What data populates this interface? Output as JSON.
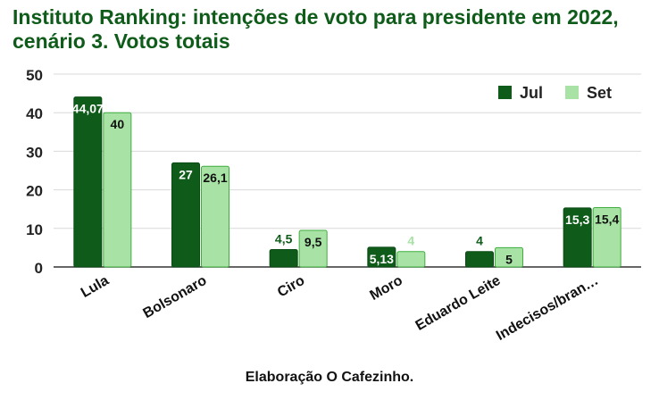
{
  "chart_data": {
    "type": "bar",
    "title": "Instituto Ranking: intenções de voto para presidente em 2022, cenário 3. Votos totais",
    "caption": "Elaboração O Cafezinho.",
    "categories": [
      "Lula",
      "Bolsonaro",
      "Ciro",
      "Moro",
      "Eduardo Leite",
      "Indecisos/bran…"
    ],
    "series": [
      {
        "name": "Jul",
        "color": "#0f5c1a",
        "values": [
          44.07,
          27,
          4.5,
          5.13,
          4,
          15.3
        ],
        "labels": [
          "44,07",
          "27",
          "4,5",
          "5,13",
          "4",
          "15,3"
        ]
      },
      {
        "name": "Set",
        "color": "#a8e3a5",
        "values": [
          40,
          26.1,
          9.5,
          4,
          5,
          15.4
        ],
        "labels": [
          "40",
          "26,1",
          "9,5",
          "4",
          "5",
          "15,4"
        ]
      }
    ],
    "y_ticks": [
      "0",
      "10",
      "20",
      "30",
      "40",
      "50"
    ],
    "ylim": [
      0,
      50
    ],
    "grid": true,
    "legend_position": "top-right"
  }
}
